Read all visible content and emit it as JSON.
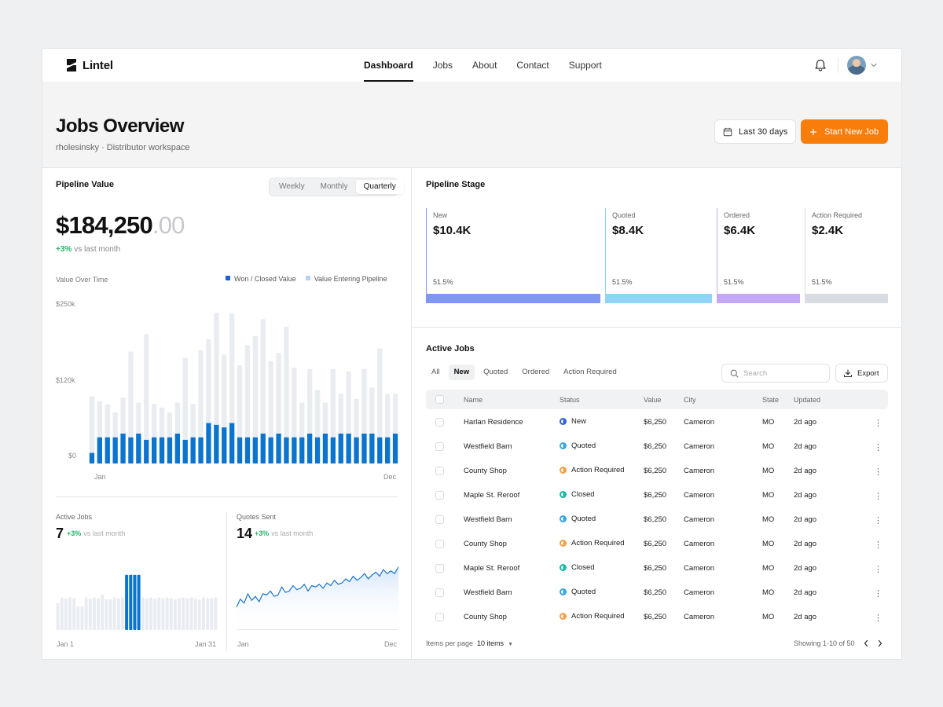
{
  "brand": {
    "name": "Lintel"
  },
  "nav": {
    "items": [
      "Dashboard",
      "Jobs",
      "About",
      "Contact",
      "Support"
    ],
    "active": "Dashboard"
  },
  "header": {
    "title": "Jobs Overview",
    "subtitle": "rholesinsky · Distributor workspace",
    "date_range_label": "Last 30 days",
    "start_button_label": "Start New Job"
  },
  "pipeline_value": {
    "title": "Pipeline Value",
    "periods": [
      "Weekly",
      "Monthly",
      "Quarterly"
    ],
    "active_period": "Quarterly",
    "value_main": "$184,250",
    "value_cents": ".00",
    "delta": "+3%",
    "delta_label": "vs last month",
    "chart_label": "Value Over Time",
    "legend": [
      "Won / Closed Value",
      "Value Entering Pipeline"
    ]
  },
  "chart_data": [
    {
      "type": "bar",
      "title": "Value Over Time",
      "x_start_label": "Jan",
      "x_end_label": "Dec",
      "y_ticks": [
        "$250k",
        "$120k",
        "$0"
      ],
      "ylim": [
        0,
        250000
      ],
      "series": [
        {
          "name": "Won / Closed Value",
          "color": "#0b74cf",
          "values": [
            17000,
            42000,
            42000,
            42000,
            48000,
            42000,
            48000,
            38000,
            42000,
            42000,
            42000,
            48000,
            38000,
            42000,
            42000,
            65000,
            62000,
            58000,
            65000,
            42000,
            42000,
            42000,
            48000,
            42000,
            48000,
            42000,
            42000,
            42000,
            48000,
            42000,
            48000,
            42000,
            48000,
            48000,
            42000,
            48000,
            48000,
            42000,
            42000,
            48000
          ]
        },
        {
          "name": "Value Entering Pipeline",
          "color": "#e9ecf1",
          "values": [
            108000,
            100000,
            95000,
            82000,
            106000,
            180000,
            98000,
            208000,
            96000,
            90000,
            82000,
            98000,
            170000,
            96000,
            182000,
            200000,
            242000,
            175000,
            242000,
            158000,
            190000,
            205000,
            232000,
            165000,
            178000,
            220000,
            154000,
            98000,
            152000,
            118000,
            98000,
            152000,
            112000,
            148000,
            104000,
            152000,
            122000,
            185000,
            112000,
            112000
          ]
        }
      ]
    },
    {
      "type": "bar",
      "title": "Active Jobs",
      "x_start_label": "Jan 1",
      "x_end_label": "Jan 31",
      "series": [
        {
          "name": "",
          "values": [
            60,
            72,
            70,
            72,
            70,
            52,
            52,
            72,
            70,
            72,
            70,
            78,
            68,
            68,
            72,
            70,
            72,
            70,
            68,
            72,
            70,
            72,
            70,
            72,
            70,
            72,
            70,
            72,
            70,
            68,
            70,
            72,
            70,
            72,
            70,
            68,
            72,
            70,
            70,
            72
          ],
          "highlight": [
            17,
            18,
            19,
            20
          ]
        }
      ]
    },
    {
      "type": "area",
      "title": "Quotes Sent",
      "x_start_label": "Jan",
      "x_end_label": "Dec",
      "series": [
        {
          "name": "",
          "values": [
            20,
            32,
            26,
            40,
            30,
            36,
            28,
            40,
            38,
            44,
            36,
            38,
            50,
            42,
            44,
            52,
            46,
            48,
            54,
            44,
            52,
            50,
            54,
            48,
            56,
            52,
            60,
            54,
            56,
            62,
            58,
            66,
            60,
            64,
            70,
            62,
            68,
            72,
            66,
            76,
            70,
            74,
            70,
            80
          ]
        }
      ]
    }
  ],
  "mini": {
    "active_jobs": {
      "title": "Active Jobs",
      "value": "7",
      "delta": "+3%",
      "delta_label": "vs last month"
    },
    "quotes_sent": {
      "title": "Quotes Sent",
      "value": "14",
      "delta": "+3%",
      "delta_label": "vs last month"
    }
  },
  "pipeline_stage": {
    "title": "Pipeline Stage",
    "stages": [
      {
        "name": "New",
        "value": "$10.4K",
        "pct": "51.5%",
        "color": "#7f96f2"
      },
      {
        "name": "Quoted",
        "value": "$8.4K",
        "pct": "51.5%",
        "color": "#8fd3f6"
      },
      {
        "name": "Ordered",
        "value": "$6.4K",
        "pct": "51.5%",
        "color": "#c4a7f5"
      },
      {
        "name": "Action Required",
        "value": "$2.4K",
        "pct": "51.5%",
        "color": "#d9dce2"
      }
    ]
  },
  "active_jobs": {
    "title": "Active Jobs",
    "tabs": [
      "All",
      "New",
      "Quoted",
      "Ordered",
      "Action Required"
    ],
    "active_tab": "New",
    "search_placeholder": "Search",
    "export_label": "Export",
    "columns": [
      "Name",
      "Status",
      "Value",
      "City",
      "State",
      "Updated"
    ],
    "rows": [
      {
        "name": "Harlan Residence",
        "status": "New",
        "value": "$6,250",
        "city": "Cameron",
        "state": "MO",
        "updated": "2d ago"
      },
      {
        "name": "Westfield Barn",
        "status": "Quoted",
        "value": "$6,250",
        "city": "Cameron",
        "state": "MO",
        "updated": "2d ago"
      },
      {
        "name": "County Shop",
        "status": "Action Required",
        "value": "$6,250",
        "city": "Cameron",
        "state": "MO",
        "updated": "2d ago"
      },
      {
        "name": "Maple St. Reroof",
        "status": "Closed",
        "value": "$6,250",
        "city": "Cameron",
        "state": "MO",
        "updated": "2d ago"
      },
      {
        "name": "Westfield Barn",
        "status": "Quoted",
        "value": "$6,250",
        "city": "Cameron",
        "state": "MO",
        "updated": "2d ago"
      },
      {
        "name": "County Shop",
        "status": "Action Required",
        "value": "$6,250",
        "city": "Cameron",
        "state": "MO",
        "updated": "2d ago"
      },
      {
        "name": "Maple St. Reroof",
        "status": "Closed",
        "value": "$6,250",
        "city": "Cameron",
        "state": "MO",
        "updated": "2d ago"
      },
      {
        "name": "Westfield Barn",
        "status": "Quoted",
        "value": "$6,250",
        "city": "Cameron",
        "state": "MO",
        "updated": "2d ago"
      },
      {
        "name": "County Shop",
        "status": "Action Required",
        "value": "$6,250",
        "city": "Cameron",
        "state": "MO",
        "updated": "2d ago"
      }
    ],
    "status_colors": {
      "New": "#2f5fe0",
      "Quoted": "#3aa4e8",
      "Action Required": "#f5a047",
      "Closed": "#14b8a6"
    },
    "items_per_page_label": "Items per page",
    "items_per_page_value": "10 items",
    "showing": "Showing 1-10 of 50"
  },
  "icons": {
    "brand": "lintel-logo-icon",
    "bell": "bell-icon",
    "calendar": "calendar-icon",
    "plus": "plus-icon",
    "search": "search-icon",
    "export": "download-icon"
  }
}
